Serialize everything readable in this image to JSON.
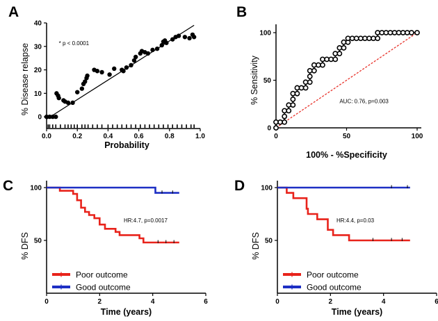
{
  "chart_data": [
    {
      "panel": "A",
      "type": "scatter",
      "xlabel": "Probability",
      "ylabel": "% Disease relapse",
      "xlim": [
        0,
        1.0
      ],
      "ylim": [
        -5,
        40
      ],
      "xticks": [
        "0.0",
        "0.2",
        "0.4",
        "0.6",
        "0.8",
        "1.0"
      ],
      "yticks": [
        "0",
        "10",
        "20",
        "30",
        "40"
      ],
      "annotation": "* p < 0.0001",
      "points": [
        [
          0.0,
          0
        ],
        [
          0.02,
          0
        ],
        [
          0.04,
          0
        ],
        [
          0.06,
          0
        ],
        [
          0.065,
          10
        ],
        [
          0.075,
          9
        ],
        [
          0.08,
          8
        ],
        [
          0.11,
          7
        ],
        [
          0.12,
          6.5
        ],
        [
          0.14,
          6
        ],
        [
          0.17,
          6
        ],
        [
          0.2,
          10.5
        ],
        [
          0.23,
          12
        ],
        [
          0.24,
          14
        ],
        [
          0.25,
          15
        ],
        [
          0.26,
          16.5
        ],
        [
          0.265,
          17.5
        ],
        [
          0.31,
          20
        ],
        [
          0.33,
          19.5
        ],
        [
          0.36,
          19
        ],
        [
          0.41,
          18
        ],
        [
          0.44,
          20.5
        ],
        [
          0.49,
          20
        ],
        [
          0.5,
          19.5
        ],
        [
          0.52,
          21
        ],
        [
          0.55,
          22
        ],
        [
          0.57,
          24
        ],
        [
          0.58,
          25.5
        ],
        [
          0.61,
          27
        ],
        [
          0.62,
          28
        ],
        [
          0.64,
          27.5
        ],
        [
          0.66,
          27
        ],
        [
          0.69,
          28.5
        ],
        [
          0.72,
          29
        ],
        [
          0.75,
          30.5
        ],
        [
          0.76,
          32
        ],
        [
          0.77,
          32.5
        ],
        [
          0.78,
          31.5
        ],
        [
          0.82,
          33
        ],
        [
          0.84,
          34
        ],
        [
          0.86,
          34.5
        ],
        [
          0.9,
          34
        ],
        [
          0.93,
          33.5
        ],
        [
          0.95,
          35
        ],
        [
          0.96,
          34
        ]
      ],
      "fit_line": [
        [
          0.0,
          -1
        ],
        [
          0.96,
          39
        ]
      ],
      "rug_y": -4,
      "rug_x": [
        0.01,
        0.02,
        0.04,
        0.06,
        0.09,
        0.12,
        0.14,
        0.16,
        0.18,
        0.2,
        0.23,
        0.25,
        0.27,
        0.3,
        0.33,
        0.36,
        0.4,
        0.43,
        0.46,
        0.49,
        0.52,
        0.55,
        0.58,
        0.61,
        0.64,
        0.67,
        0.7,
        0.73,
        0.76,
        0.79,
        0.82,
        0.85,
        0.88,
        0.91,
        0.94,
        0.96
      ]
    },
    {
      "panel": "B",
      "type": "line",
      "xlabel": "100% - %Specificity",
      "ylabel": "% Sensitivity",
      "xlim": [
        0,
        100
      ],
      "ylim": [
        0,
        100
      ],
      "xticks": [
        "0",
        "50",
        "100"
      ],
      "yticks": [
        "0",
        "50",
        "100"
      ],
      "annotation": "AUC: 0.76, p=0.003",
      "roc": [
        [
          0,
          0
        ],
        [
          0,
          6
        ],
        [
          3,
          6
        ],
        [
          6,
          6
        ],
        [
          6,
          12
        ],
        [
          6,
          18
        ],
        [
          9,
          18
        ],
        [
          9,
          24
        ],
        [
          12,
          24
        ],
        [
          12,
          30
        ],
        [
          12,
          36
        ],
        [
          15,
          36
        ],
        [
          15,
          42
        ],
        [
          18,
          42
        ],
        [
          21,
          42
        ],
        [
          21,
          48
        ],
        [
          24,
          48
        ],
        [
          24,
          54
        ],
        [
          24,
          60
        ],
        [
          27,
          60
        ],
        [
          27,
          66
        ],
        [
          30,
          66
        ],
        [
          33,
          66
        ],
        [
          33,
          72
        ],
        [
          36,
          72
        ],
        [
          39,
          72
        ],
        [
          42,
          72
        ],
        [
          42,
          78
        ],
        [
          45,
          78
        ],
        [
          45,
          84
        ],
        [
          48,
          84
        ],
        [
          48,
          90
        ],
        [
          51,
          90
        ],
        [
          51,
          94
        ],
        [
          54,
          94
        ],
        [
          57,
          94
        ],
        [
          60,
          94
        ],
        [
          63,
          94
        ],
        [
          66,
          94
        ],
        [
          69,
          94
        ],
        [
          72,
          94
        ],
        [
          72,
          100
        ],
        [
          75,
          100
        ],
        [
          78,
          100
        ],
        [
          81,
          100
        ],
        [
          84,
          100
        ],
        [
          87,
          100
        ],
        [
          90,
          100
        ],
        [
          93,
          100
        ],
        [
          96,
          100
        ],
        [
          100,
          100
        ]
      ],
      "reference_line": [
        [
          0,
          0
        ],
        [
          100,
          100
        ]
      ],
      "colors": {
        "roc": "#000000",
        "reference": "#e8322a"
      }
    },
    {
      "panel": "C",
      "type": "line",
      "subtype": "kaplan-meier",
      "xlabel": "Time (years)",
      "ylabel": "% DFS",
      "xlim": [
        0,
        6
      ],
      "ylim": [
        0,
        100
      ],
      "xticks": [
        "0",
        "2",
        "4",
        "6"
      ],
      "yticks": [
        "50",
        "100"
      ],
      "annotation": "HR:4.7, p=0.0017",
      "series": [
        {
          "name": "Poor outcome",
          "color": "#e8231b",
          "steps": [
            [
              0,
              100
            ],
            [
              0.5,
              97
            ],
            [
              1.0,
              94
            ],
            [
              1.15,
              88
            ],
            [
              1.3,
              81
            ],
            [
              1.45,
              77
            ],
            [
              1.6,
              74
            ],
            [
              1.8,
              71
            ],
            [
              2.0,
              65
            ],
            [
              2.2,
              61
            ],
            [
              2.6,
              58
            ],
            [
              2.75,
              55
            ],
            [
              3.5,
              52
            ],
            [
              3.65,
              48
            ],
            [
              5.0,
              48
            ]
          ],
          "censors": [
            4.2,
            4.5,
            4.8
          ]
        },
        {
          "name": "Good outcome",
          "color": "#1d2fc4",
          "steps": [
            [
              0,
              100
            ],
            [
              4.1,
              100
            ],
            [
              4.1,
              95
            ],
            [
              5.0,
              95
            ]
          ],
          "censors": [
            4.35,
            4.75
          ]
        }
      ]
    },
    {
      "panel": "D",
      "type": "line",
      "subtype": "kaplan-meier",
      "xlabel": "Time (years)",
      "ylabel": "% DFS",
      "xlim": [
        0,
        6
      ],
      "ylim": [
        0,
        100
      ],
      "xticks": [
        "0",
        "2",
        "4",
        "6"
      ],
      "yticks": [
        "50",
        "100"
      ],
      "annotation": "HR:4.4, p=0.03",
      "series": [
        {
          "name": "Poor outcome",
          "color": "#e8231b",
          "steps": [
            [
              0,
              100
            ],
            [
              0.35,
              95
            ],
            [
              0.6,
              90
            ],
            [
              1.1,
              80
            ],
            [
              1.15,
              75
            ],
            [
              1.5,
              70
            ],
            [
              1.9,
              60
            ],
            [
              2.1,
              55
            ],
            [
              2.7,
              50
            ],
            [
              5.0,
              50
            ]
          ],
          "censors": [
            3.6,
            4.3,
            4.7
          ]
        },
        {
          "name": "Good outcome",
          "color": "#1d2fc4",
          "steps": [
            [
              0,
              100
            ],
            [
              5.0,
              100
            ]
          ],
          "censors": [
            4.3,
            4.9
          ]
        }
      ]
    }
  ],
  "labels": {
    "A": "A",
    "B": "B",
    "C": "C",
    "D": "D"
  }
}
